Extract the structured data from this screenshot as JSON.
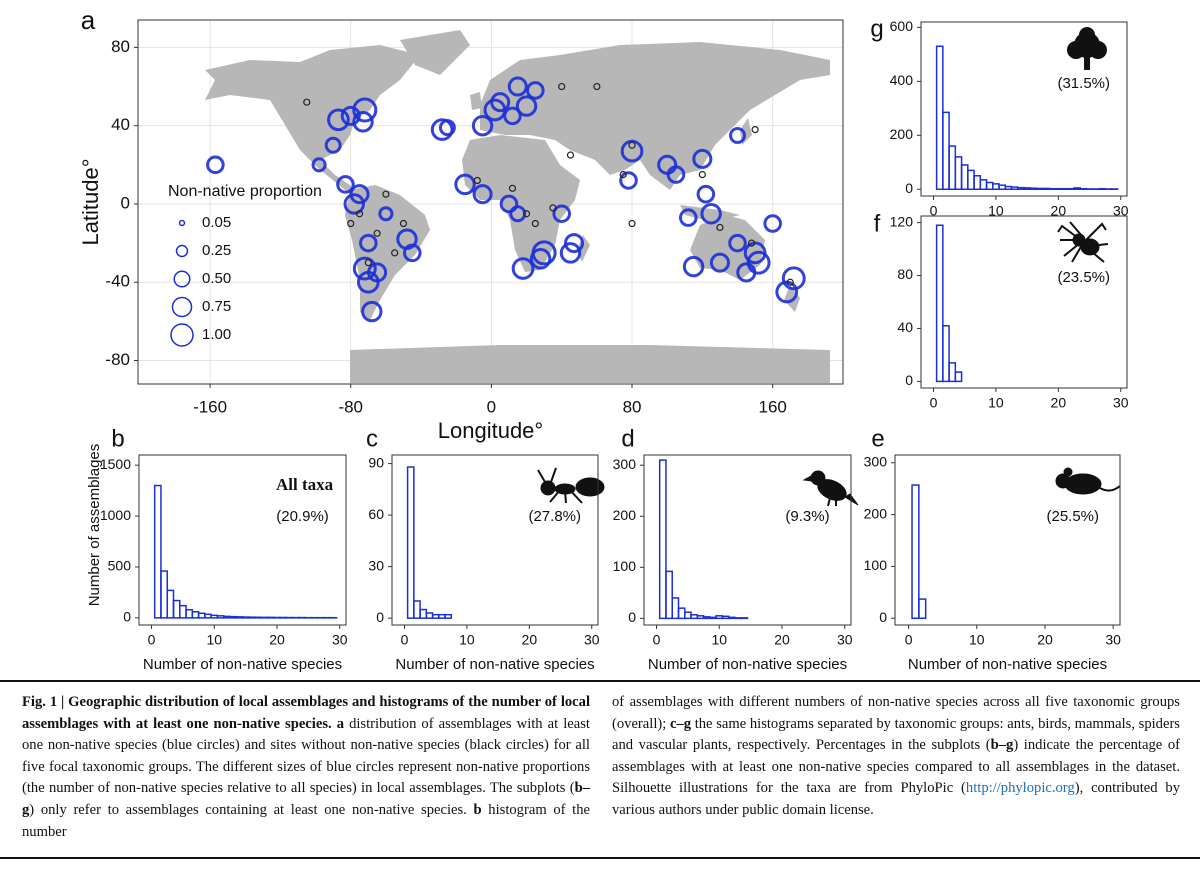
{
  "chart_data": [
    {
      "type": "scatter",
      "panel": "a",
      "xlabel": "Longitude°",
      "ylabel": "Latitude°",
      "xlim": [
        -201,
        200
      ],
      "ylim": [
        -92,
        94
      ],
      "xticks": [
        -160,
        -80,
        0,
        80,
        160
      ],
      "yticks": [
        -80,
        -40,
        0,
        40,
        80
      ],
      "grid": true,
      "legend": {
        "title": "Non-native proportion",
        "sizes": [
          0.05,
          0.25,
          {
            "value": 0.5,
            "label": "0.50"
          },
          0.75,
          {
            "value": 1,
            "label": "1.00"
          }
        ]
      },
      "series": [
        {
          "color": "#1b2fd8",
          "x": [
            -157,
            -87,
            -80,
            -73,
            -72,
            -90,
            -98,
            -83,
            -75,
            -78,
            -70,
            -72,
            -70,
            -68,
            -65,
            -48,
            -60,
            -45,
            -28,
            -25,
            -5,
            2,
            5,
            12,
            20,
            15,
            25,
            -15,
            -5,
            10,
            15,
            30,
            18,
            28,
            40,
            47,
            45,
            80,
            78,
            100,
            105,
            120,
            122,
            125,
            112,
            140,
            130,
            150,
            152,
            145,
            115,
            140,
            160,
            172,
            168
          ],
          "y": [
            20,
            43,
            45,
            42,
            48,
            30,
            20,
            10,
            5,
            0,
            -20,
            -33,
            -40,
            -55,
            -35,
            -18,
            -5,
            -25,
            38,
            39,
            40,
            48,
            52,
            45,
            50,
            60,
            58,
            10,
            5,
            0,
            -5,
            -25,
            -33,
            -28,
            -5,
            -20,
            -25,
            27,
            12,
            20,
            15,
            23,
            5,
            -5,
            -7,
            -20,
            -30,
            -25,
            -30,
            -35,
            -32,
            35,
            -10,
            -38,
            -45
          ],
          "size": [
            0.5,
            0.8,
            0.6,
            0.7,
            1,
            0.4,
            0.3,
            0.5,
            0.6,
            0.7,
            0.5,
            0.9,
            0.8,
            0.7,
            0.6,
            0.7,
            0.3,
            0.5,
            0.8,
            0.4,
            0.7,
            0.8,
            0.6,
            0.5,
            0.7,
            0.6,
            0.5,
            0.7,
            0.6,
            0.5,
            0.4,
            1,
            0.8,
            0.7,
            0.5,
            0.6,
            0.7,
            0.8,
            0.5,
            0.6,
            0.5,
            0.6,
            0.5,
            0.7,
            0.5,
            0.5,
            0.6,
            0.8,
            0.9,
            0.6,
            0.7,
            0.4,
            0.5,
            0.9,
            0.8
          ]
        },
        {
          "color": "#222222",
          "x": [
            -105,
            -60,
            -75,
            -65,
            -55,
            -70,
            -50,
            -80,
            12,
            -8,
            20,
            35,
            25,
            60,
            40,
            75,
            80,
            120,
            130,
            150,
            148,
            80,
            45,
            170
          ],
          "y": [
            52,
            5,
            -5,
            -15,
            -25,
            -30,
            -10,
            -10,
            8,
            12,
            -5,
            -2,
            -10,
            60,
            60,
            15,
            -10,
            15,
            -12,
            38,
            -20,
            30,
            25,
            -40
          ]
        }
      ]
    },
    {
      "type": "histogram",
      "panel": "b",
      "label": "All taxa",
      "annotation": "(20.9%)",
      "xlabel": "Number of non-native species",
      "ylabel": "Number of assemblages",
      "color": "#1b2fd8",
      "xlim": [
        -2,
        31
      ],
      "ylim": [
        -70,
        1600
      ],
      "xticks": [
        0,
        10,
        20,
        30
      ],
      "yticks": [
        0,
        500,
        1000,
        1500
      ],
      "bins": [
        0.5,
        1.5,
        2.5,
        3.5,
        4.5,
        5.5,
        6.5,
        7.5,
        8.5,
        9.5,
        10.5,
        11.5,
        12.5,
        13.5,
        14.5,
        15.5,
        16.5,
        17.5,
        18.5,
        19.5,
        20.5,
        21.5,
        22.5,
        23.5,
        24.5,
        25.5,
        26.5,
        27.5,
        28.5,
        29.5
      ],
      "values": [
        1300,
        460,
        270,
        170,
        120,
        80,
        60,
        45,
        35,
        25,
        20,
        15,
        12,
        10,
        8,
        7,
        6,
        5,
        5,
        4,
        4,
        3,
        3,
        3,
        2,
        2,
        2,
        2,
        2
      ]
    },
    {
      "type": "histogram",
      "panel": "c",
      "annotation": "(27.8%)",
      "xlabel": "Number of non-native species",
      "color": "#1b2fd8",
      "xlim": [
        -2,
        31
      ],
      "ylim": [
        -4,
        95
      ],
      "xticks": [
        0,
        10,
        20,
        30
      ],
      "yticks": [
        0,
        30,
        60,
        90
      ],
      "bins": [
        0.5,
        1.5,
        2.5,
        3.5,
        4.5,
        5.5,
        6.5,
        7.5,
        8.5,
        9.5,
        10.5,
        11.5,
        12.5,
        13.5,
        14.5,
        15.5,
        16.5,
        17.5,
        18.5,
        19.5,
        20.5,
        21.5,
        22.5,
        23.5,
        24.5,
        25.5,
        26.5,
        27.5,
        28.5,
        29.5
      ],
      "values": [
        88,
        10,
        5,
        3,
        2,
        2,
        2,
        0,
        0,
        0,
        0,
        0,
        0,
        0,
        0,
        0,
        0,
        0,
        0,
        0,
        0,
        0,
        0,
        0,
        0,
        0,
        0,
        0,
        0
      ]
    },
    {
      "type": "histogram",
      "panel": "d",
      "annotation": "(9.3%)",
      "xlabel": "Number of non-native species",
      "color": "#1b2fd8",
      "xlim": [
        -2,
        31
      ],
      "ylim": [
        -13,
        320
      ],
      "xticks": [
        0,
        10,
        20,
        30
      ],
      "yticks": [
        0,
        100,
        200,
        300
      ],
      "bins": [
        0.5,
        1.5,
        2.5,
        3.5,
        4.5,
        5.5,
        6.5,
        7.5,
        8.5,
        9.5,
        10.5,
        11.5,
        12.5,
        13.5,
        14.5,
        15.5,
        16.5,
        17.5,
        18.5,
        19.5,
        20.5,
        21.5,
        22.5,
        23.5,
        24.5,
        25.5,
        26.5,
        27.5,
        28.5,
        29.5
      ],
      "values": [
        310,
        92,
        40,
        20,
        12,
        7,
        5,
        3,
        2,
        5,
        4,
        2,
        1,
        1,
        0,
        0,
        0,
        0,
        0,
        0,
        0,
        0,
        0,
        0,
        0,
        0,
        0,
        0,
        0
      ]
    },
    {
      "type": "histogram",
      "panel": "e",
      "annotation": "(25.5%)",
      "xlabel": "Number of non-native species",
      "color": "#1b2fd8",
      "xlim": [
        -2,
        31
      ],
      "ylim": [
        -13,
        315
      ],
      "xticks": [
        0,
        10,
        20,
        30
      ],
      "yticks": [
        0,
        100,
        200,
        300
      ],
      "bins": [
        0.5,
        1.5,
        2.5,
        3.5,
        4.5,
        5.5,
        6.5,
        7.5,
        8.5,
        9.5,
        10.5,
        11.5,
        12.5,
        13.5,
        14.5,
        15.5,
        16.5,
        17.5,
        18.5,
        19.5,
        20.5,
        21.5,
        22.5,
        23.5,
        24.5,
        25.5,
        26.5,
        27.5,
        28.5,
        29.5
      ],
      "values": [
        257,
        37,
        0,
        0,
        0,
        0,
        0,
        0,
        0,
        0,
        0,
        0,
        0,
        0,
        0,
        0,
        0,
        0,
        0,
        0,
        0,
        0,
        0,
        0,
        0,
        0,
        0,
        0,
        0
      ]
    },
    {
      "type": "histogram",
      "panel": "f",
      "annotation": "(23.5%)",
      "color": "#1b2fd8",
      "xlim": [
        -2,
        31
      ],
      "ylim": [
        -5,
        125
      ],
      "xticks": [
        0,
        10,
        20,
        30
      ],
      "yticks": [
        0,
        40,
        80,
        120
      ],
      "bins": [
        0.5,
        1.5,
        2.5,
        3.5,
        4.5,
        5.5,
        6.5,
        7.5,
        8.5,
        9.5,
        10.5,
        11.5,
        12.5,
        13.5,
        14.5,
        15.5,
        16.5,
        17.5,
        18.5,
        19.5,
        20.5,
        21.5,
        22.5,
        23.5,
        24.5,
        25.5,
        26.5,
        27.5,
        28.5,
        29.5
      ],
      "values": [
        118,
        42,
        14,
        7,
        0,
        0,
        0,
        0,
        0,
        0,
        0,
        0,
        0,
        0,
        0,
        0,
        0,
        0,
        0,
        0,
        0,
        0,
        0,
        0,
        0,
        0,
        0,
        0,
        0
      ]
    },
    {
      "type": "histogram",
      "panel": "g",
      "annotation": "(31.5%)",
      "color": "#1b2fd8",
      "xlim": [
        -2,
        31
      ],
      "ylim": [
        -25,
        620
      ],
      "xticks": [
        0,
        10,
        20,
        30
      ],
      "yticks": [
        0,
        200,
        400,
        600
      ],
      "bins": [
        0.5,
        1.5,
        2.5,
        3.5,
        4.5,
        5.5,
        6.5,
        7.5,
        8.5,
        9.5,
        10.5,
        11.5,
        12.5,
        13.5,
        14.5,
        15.5,
        16.5,
        17.5,
        18.5,
        19.5,
        20.5,
        21.5,
        22.5,
        23.5,
        24.5,
        25.5,
        26.5,
        27.5,
        28.5,
        29.5
      ],
      "values": [
        530,
        285,
        160,
        120,
        90,
        70,
        50,
        35,
        25,
        20,
        15,
        10,
        8,
        6,
        5,
        4,
        3,
        3,
        2,
        2,
        2,
        2,
        5,
        2,
        1,
        1,
        2,
        1,
        1
      ]
    }
  ],
  "caption": {
    "left": [
      {
        "text": "Fig. 1 | Geographic distribution of local assemblages and histograms of the number of local assemblages with at least one non-native species.",
        "bold": true
      },
      {
        "text": " a",
        "bold": true
      },
      {
        "text": " distribution of assemblages with at least one non-native species (blue circles) and sites without non-native species (black circles) for all five focal taxonomic groups. The different sizes of blue circles represent non-native proportions (the number of non-native species relative to all species) in local assemblages. The subplots ("
      },
      {
        "text": "b–g",
        "bold": true
      },
      {
        "text": ") only refer to assemblages containing at least one non-native species. "
      },
      {
        "text": "b",
        "bold": true
      },
      {
        "text": " histogram of the number"
      }
    ],
    "right": [
      {
        "text": "of assemblages with different numbers of non-native species across all five taxonomic groups (overall); "
      },
      {
        "text": "c–g",
        "bold": true
      },
      {
        "text": " the same histograms separated by taxonomic groups: ants, birds, mammals, spiders and vascular plants, respectively. Percentages in the subplots ("
      },
      {
        "text": "b–g",
        "bold": true
      },
      {
        "text": ") indicate the percentage of assemblages with at least one non-native species compared to all assemblages in the dataset. Silhouette illustrations for the taxa are from PhyloPic ("
      },
      {
        "text": "http://phylopic.org",
        "link": true
      },
      {
        "text": "), contributed by various authors under public domain license."
      }
    ]
  }
}
